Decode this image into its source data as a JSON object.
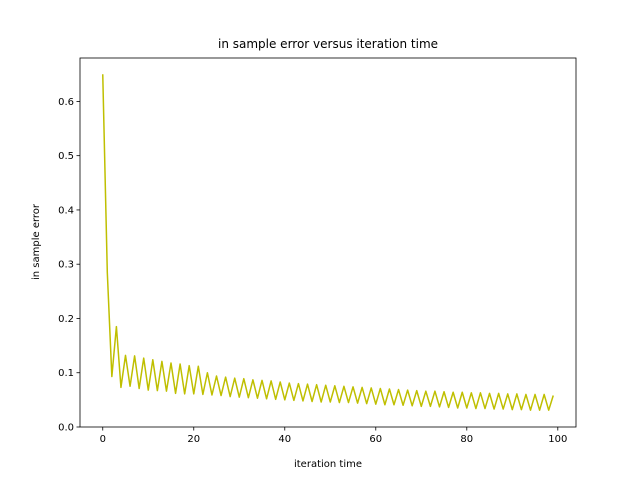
{
  "chart_data": {
    "type": "line",
    "title": "in sample error versus iteration time",
    "xlabel": "iteration time",
    "ylabel": "in sample error",
    "xlim": [
      -5,
      104
    ],
    "ylim": [
      0,
      0.68
    ],
    "xticks": [
      0,
      20,
      40,
      60,
      80,
      100
    ],
    "yticks": [
      0.0,
      0.1,
      0.2,
      0.3,
      0.4,
      0.5,
      0.6
    ],
    "grid": false,
    "series": [
      {
        "color": "#bfbf00",
        "x": [
          0,
          1,
          2,
          3,
          4,
          5,
          6,
          7,
          8,
          9,
          10,
          11,
          12,
          13,
          14,
          15,
          16,
          17,
          18,
          19,
          20,
          21,
          22,
          23,
          24,
          25,
          26,
          27,
          28,
          29,
          30,
          31,
          32,
          33,
          34,
          35,
          36,
          37,
          38,
          39,
          40,
          41,
          42,
          43,
          44,
          45,
          46,
          47,
          48,
          49,
          50,
          51,
          52,
          53,
          54,
          55,
          56,
          57,
          58,
          59,
          60,
          61,
          62,
          63,
          64,
          65,
          66,
          67,
          68,
          69,
          70,
          71,
          72,
          73,
          74,
          75,
          76,
          77,
          78,
          79,
          80,
          81,
          82,
          83,
          84,
          85,
          86,
          87,
          88,
          89,
          90,
          91,
          92,
          93,
          94,
          95,
          96,
          97,
          98,
          99
        ],
        "y": [
          0.65,
          0.285,
          0.093,
          0.185,
          0.073,
          0.132,
          0.075,
          0.131,
          0.071,
          0.127,
          0.068,
          0.124,
          0.067,
          0.121,
          0.066,
          0.118,
          0.062,
          0.116,
          0.061,
          0.113,
          0.061,
          0.112,
          0.06,
          0.1,
          0.059,
          0.094,
          0.058,
          0.092,
          0.056,
          0.09,
          0.055,
          0.089,
          0.054,
          0.087,
          0.053,
          0.086,
          0.052,
          0.085,
          0.051,
          0.083,
          0.05,
          0.081,
          0.049,
          0.08,
          0.048,
          0.079,
          0.047,
          0.078,
          0.046,
          0.077,
          0.046,
          0.076,
          0.045,
          0.075,
          0.045,
          0.074,
          0.044,
          0.073,
          0.043,
          0.072,
          0.042,
          0.071,
          0.041,
          0.07,
          0.041,
          0.069,
          0.04,
          0.068,
          0.039,
          0.067,
          0.038,
          0.066,
          0.038,
          0.066,
          0.037,
          0.065,
          0.036,
          0.064,
          0.035,
          0.064,
          0.035,
          0.063,
          0.034,
          0.063,
          0.034,
          0.062,
          0.033,
          0.062,
          0.033,
          0.061,
          0.032,
          0.061,
          0.032,
          0.06,
          0.031,
          0.06,
          0.031,
          0.06,
          0.031,
          0.058
        ]
      }
    ]
  }
}
